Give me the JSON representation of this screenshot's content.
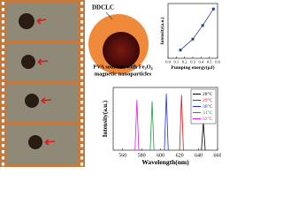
{
  "diagram": {
    "shell_label": "DDCLC",
    "core_label": [
      "PVA solution with Fe₃O₄",
      "magnetic nanoparticles"
    ]
  },
  "chart_data": [
    {
      "type": "line",
      "xlabel": "Pumping energy(μJ)",
      "ylabel": "Intensity(a.u.)",
      "color": "#2a3f8f",
      "markers": true,
      "x": [
        0.15,
        0.3,
        0.42,
        0.55
      ],
      "values": [
        0.15,
        0.35,
        0.6,
        0.9
      ],
      "xlim": [
        0,
        0.6
      ],
      "xticks": [
        {
          "value": 0,
          "label": "0.0"
        },
        0.1,
        0.2,
        0.3,
        0.4,
        0.5,
        0.6
      ],
      "ylim": [
        0,
        1
      ]
    },
    {
      "type": "line",
      "xlabel": "Wavelength(nm)",
      "ylabel": "Intensity(a.u.)",
      "legend": "top-right",
      "xlim": [
        550,
        660
      ],
      "xticks": [
        560,
        580,
        600,
        620,
        640,
        660
      ],
      "ylim": [
        0,
        1
      ],
      "series": [
        {
          "name": "28°C",
          "color": "#000000",
          "x": [
            643,
            645,
            647
          ],
          "values": [
            0,
            0.45,
            0
          ]
        },
        {
          "name": "29°C",
          "color": "#e0101a",
          "x": [
            620,
            622,
            624
          ],
          "values": [
            0,
            0.88,
            0
          ]
        },
        {
          "name": "30°C",
          "color": "#1a2ee0",
          "x": [
            604,
            606,
            608
          ],
          "values": [
            0,
            0.9,
            0
          ]
        },
        {
          "name": "31°C",
          "color": "#1a9e3a",
          "x": [
            589,
            591,
            593
          ],
          "values": [
            0,
            0.78,
            0
          ]
        },
        {
          "name": "32°C",
          "color": "#e01ae0",
          "x": [
            573,
            575,
            577
          ],
          "values": [
            0,
            0.8,
            0
          ]
        }
      ]
    }
  ]
}
